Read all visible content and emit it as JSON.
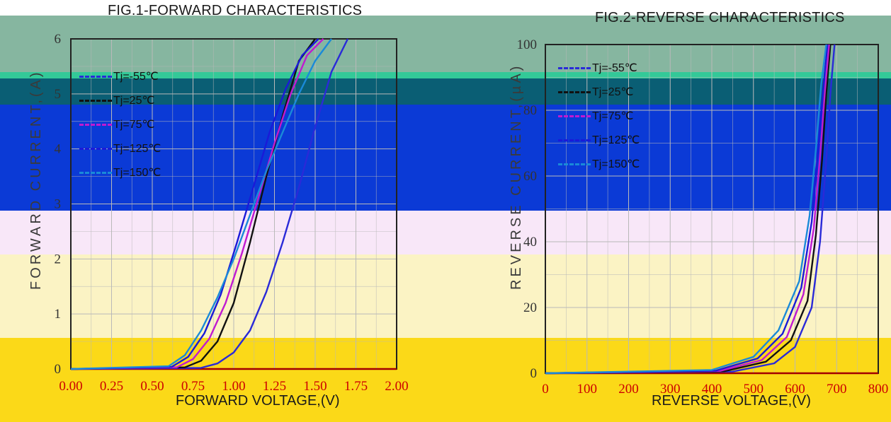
{
  "chart_data": [
    {
      "type": "line",
      "title": "FIG.1-FORWARD CHARACTERISTICS",
      "xlabel": "FORWARD VOLTAGE,(V)",
      "ylabel": "FORWARD CURRENT,(A)",
      "xlim": [
        0,
        2.0
      ],
      "ylim": [
        0,
        6
      ],
      "x_ticks": [
        "0.00",
        "0.25",
        "0.50",
        "0.75",
        "1.00",
        "1.25",
        "1.50",
        "1.75",
        "2.00"
      ],
      "y_ticks": [
        "0",
        "1",
        "2",
        "3",
        "4",
        "5",
        "6"
      ],
      "grid": true,
      "legend_position": "top-left",
      "series": [
        {
          "name": "Tj=-55℃",
          "color": "#2a2ad8",
          "x": [
            0.0,
            0.8,
            0.9,
            1.0,
            1.1,
            1.2,
            1.3,
            1.4,
            1.5,
            1.6,
            1.7
          ],
          "y": [
            0,
            0.02,
            0.1,
            0.3,
            0.7,
            1.4,
            2.3,
            3.3,
            4.4,
            5.4,
            6.0
          ]
        },
        {
          "name": "Tj=25℃",
          "color": "#111111",
          "x": [
            0.0,
            0.7,
            0.8,
            0.9,
            1.0,
            1.1,
            1.2,
            1.3,
            1.4,
            1.5
          ],
          "y": [
            0,
            0.03,
            0.15,
            0.5,
            1.2,
            2.3,
            3.5,
            4.6,
            5.6,
            6.0
          ]
        },
        {
          "name": "Tj=75℃",
          "color": "#c01ad0",
          "x": [
            0.0,
            0.65,
            0.75,
            0.85,
            0.95,
            1.05,
            1.15,
            1.25,
            1.35,
            1.45,
            1.55
          ],
          "y": [
            0,
            0.03,
            0.18,
            0.55,
            1.2,
            2.1,
            3.1,
            4.1,
            5.0,
            5.7,
            6.0
          ]
        },
        {
          "name": "Tj=125℃",
          "color": "#1a1ad8",
          "x": [
            0.0,
            0.62,
            0.72,
            0.82,
            0.92,
            1.02,
            1.12,
            1.22,
            1.32,
            1.42,
            1.52
          ],
          "y": [
            0,
            0.04,
            0.22,
            0.65,
            1.35,
            2.3,
            3.3,
            4.3,
            5.1,
            5.7,
            6.0
          ]
        },
        {
          "name": "Tj=150℃",
          "color": "#1a8ad8",
          "x": [
            0.0,
            0.6,
            0.7,
            0.8,
            0.9,
            1.0,
            1.1,
            1.2,
            1.3,
            1.4,
            1.5,
            1.6
          ],
          "y": [
            0,
            0.05,
            0.25,
            0.7,
            1.3,
            2.0,
            2.8,
            3.6,
            4.3,
            5.0,
            5.6,
            6.0
          ]
        }
      ]
    },
    {
      "type": "line",
      "title": "FIG.2-REVERSE CHARACTERISTICS",
      "xlabel": "REVERSE VOLTAGE,(V)",
      "ylabel": "REVERSE CURRENT,(µA)",
      "xlim": [
        0,
        800
      ],
      "ylim": [
        0,
        100
      ],
      "x_ticks": [
        "0",
        "100",
        "200",
        "300",
        "400",
        "500",
        "600",
        "700",
        "800"
      ],
      "y_ticks": [
        "0",
        "20",
        "40",
        "60",
        "80",
        "100"
      ],
      "grid": true,
      "legend_position": "top-left",
      "series": [
        {
          "name": "Tj=-55℃",
          "color": "#2a2ad8",
          "x": [
            0,
            450,
            550,
            600,
            640,
            660,
            675,
            685,
            695
          ],
          "y": [
            0,
            0.5,
            3,
            8,
            20,
            40,
            65,
            85,
            100
          ]
        },
        {
          "name": "Tj=25℃",
          "color": "#111111",
          "x": [
            0,
            430,
            530,
            590,
            630,
            650,
            665,
            675,
            685
          ],
          "y": [
            0,
            0.6,
            3.5,
            10,
            22,
            42,
            65,
            85,
            100
          ]
        },
        {
          "name": "Tj=75℃",
          "color": "#c01ad0",
          "x": [
            0,
            420,
            520,
            580,
            620,
            645,
            660,
            672,
            682
          ],
          "y": [
            0,
            0.7,
            4,
            11,
            24,
            44,
            66,
            86,
            100
          ]
        },
        {
          "name": "Tj=125℃",
          "color": "#1a1ad8",
          "x": [
            0,
            410,
            510,
            570,
            615,
            640,
            655,
            668,
            678
          ],
          "y": [
            0,
            0.8,
            4.5,
            12,
            26,
            46,
            67,
            87,
            100
          ]
        },
        {
          "name": "Tj=150℃",
          "color": "#1a8ad8",
          "x": [
            0,
            400,
            500,
            560,
            610,
            635,
            650,
            663,
            675
          ],
          "y": [
            0,
            1,
            5,
            13,
            28,
            48,
            68,
            88,
            100
          ]
        }
      ]
    }
  ],
  "colors": {
    "axis": "#a30000",
    "tick_labels": "#cc0000",
    "grid": "#b9b9b9"
  }
}
